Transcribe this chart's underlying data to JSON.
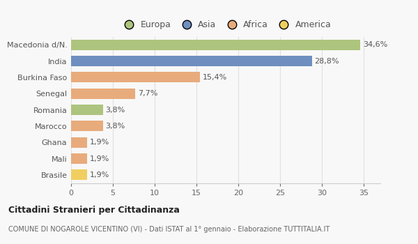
{
  "categories": [
    "Macedonia d/N.",
    "India",
    "Burkina Faso",
    "Senegal",
    "Romania",
    "Marocco",
    "Ghana",
    "Mali",
    "Brasile"
  ],
  "values": [
    34.6,
    28.8,
    15.4,
    7.7,
    3.8,
    3.8,
    1.9,
    1.9,
    1.9
  ],
  "labels": [
    "34,6%",
    "28,8%",
    "15,4%",
    "7,7%",
    "3,8%",
    "3,8%",
    "1,9%",
    "1,9%",
    "1,9%"
  ],
  "colors": [
    "#adc47e",
    "#6e8fbf",
    "#e8ab7c",
    "#e8ab7c",
    "#adc47e",
    "#e8ab7c",
    "#e8ab7c",
    "#e8ab7c",
    "#f0ce60"
  ],
  "legend_labels": [
    "Europa",
    "Asia",
    "Africa",
    "America"
  ],
  "legend_colors": [
    "#adc47e",
    "#6e8fbf",
    "#e8ab7c",
    "#f0ce60"
  ],
  "title_bold": "Cittadini Stranieri per Cittadinanza",
  "subtitle": "COMUNE DI NOGAROLE VICENTINO (VI) - Dati ISTAT al 1° gennaio - Elaborazione TUTTITALIA.IT",
  "xlim": [
    0,
    37
  ],
  "xticks": [
    0,
    5,
    10,
    15,
    20,
    25,
    30,
    35
  ],
  "bg_color": "#f8f8f8",
  "grid_color": "#e0e0e0",
  "bar_height": 0.65,
  "label_fontsize": 8,
  "tick_fontsize": 8,
  "legend_fontsize": 9
}
